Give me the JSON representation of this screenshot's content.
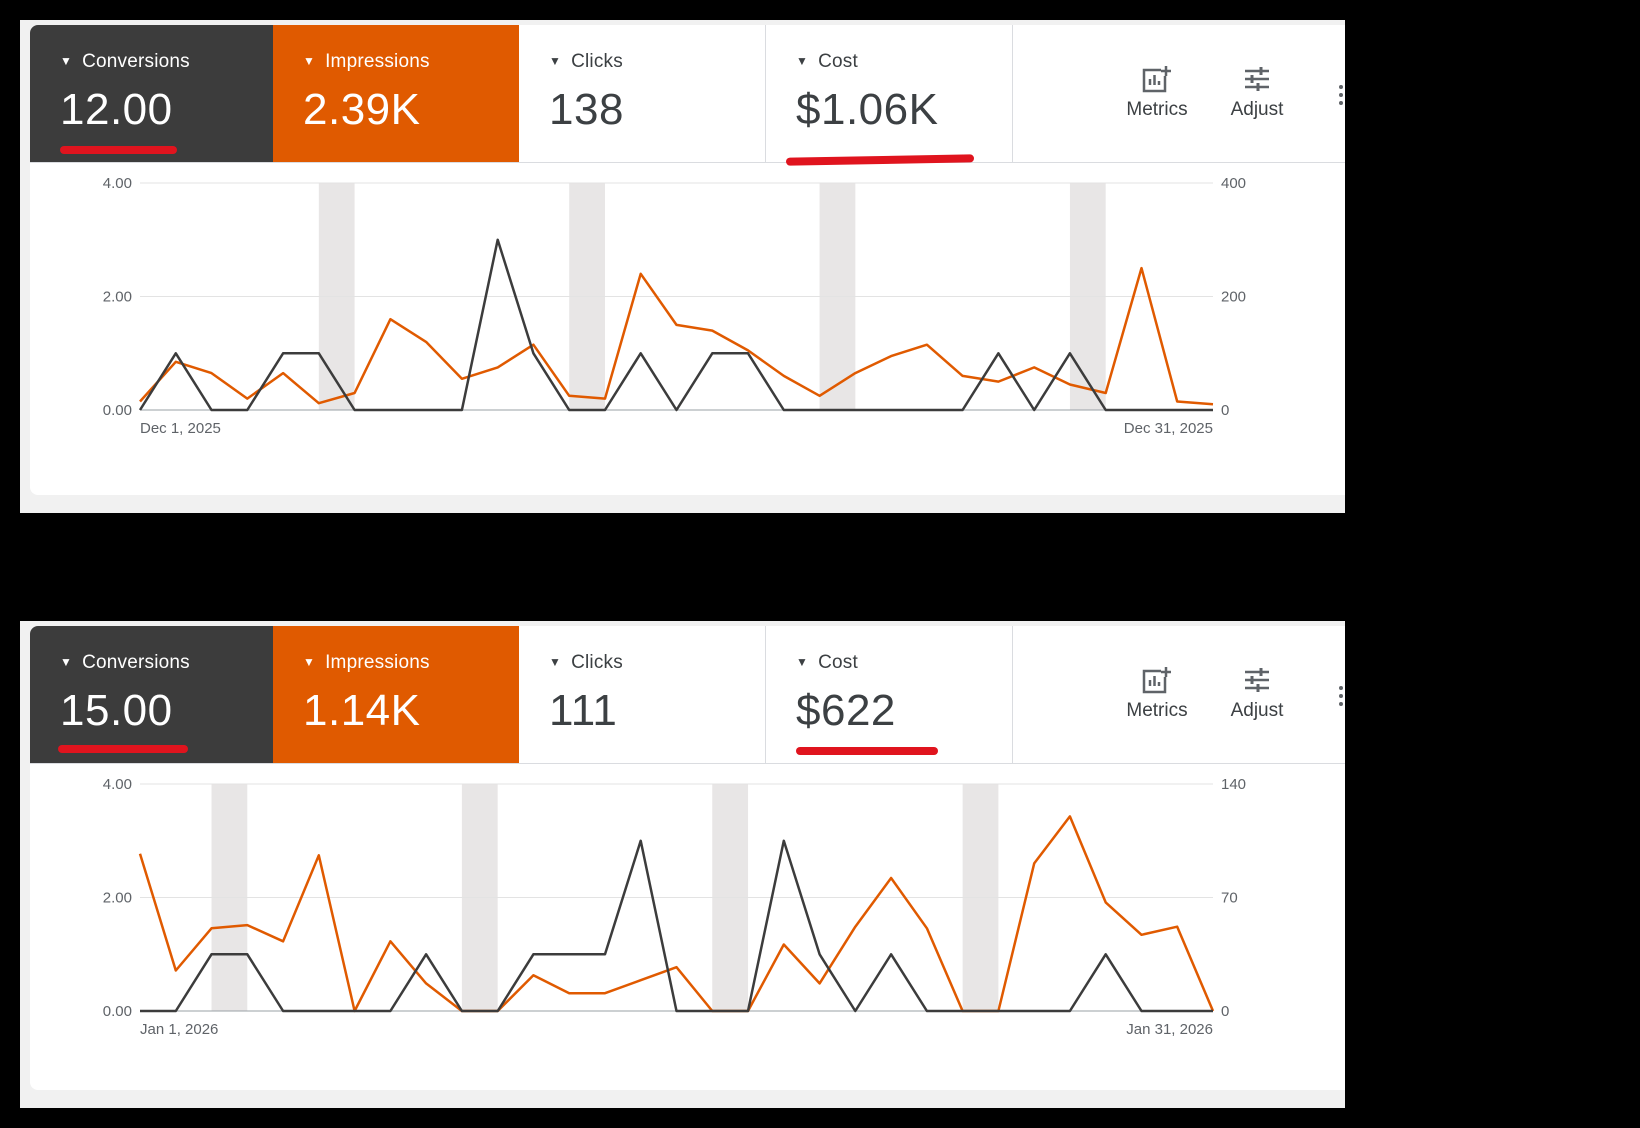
{
  "panels": [
    {
      "metrics": {
        "conversions": {
          "label": "Conversions",
          "value": "12.00"
        },
        "impressions": {
          "label": "Impressions",
          "value": "2.39K"
        },
        "clicks": {
          "label": "Clicks",
          "value": "138"
        },
        "cost": {
          "label": "Cost",
          "value": "$1.06K"
        }
      },
      "tools": {
        "metrics": "Metrics",
        "adjust": "Adjust"
      }
    },
    {
      "metrics": {
        "conversions": {
          "label": "Conversions",
          "value": "15.00"
        },
        "impressions": {
          "label": "Impressions",
          "value": "1.14K"
        },
        "clicks": {
          "label": "Clicks",
          "value": "111"
        },
        "cost": {
          "label": "Cost",
          "value": "$622"
        }
      },
      "tools": {
        "metrics": "Metrics",
        "adjust": "Adjust"
      }
    }
  ],
  "colors": {
    "conversions": "#3c3c3c",
    "impressions": "#e05a00",
    "highlight_underline": "#e0141e",
    "weekend_band": "#e8e6e6"
  },
  "chart_data": [
    {
      "type": "line",
      "x_start_label": "Dec 1, 2025",
      "x_end_label": "Dec 31, 2025",
      "x": [
        "Dec 1",
        "Dec 2",
        "Dec 3",
        "Dec 4",
        "Dec 5",
        "Dec 6",
        "Dec 7",
        "Dec 8",
        "Dec 9",
        "Dec 10",
        "Dec 11",
        "Dec 12",
        "Dec 13",
        "Dec 14",
        "Dec 15",
        "Dec 16",
        "Dec 17",
        "Dec 18",
        "Dec 19",
        "Dec 20",
        "Dec 21",
        "Dec 22",
        "Dec 23",
        "Dec 24",
        "Dec 25",
        "Dec 26",
        "Dec 27",
        "Dec 28",
        "Dec 29",
        "Dec 30",
        "Dec 31"
      ],
      "y_left_ticks": [
        "0.00",
        "2.00",
        "4.00"
      ],
      "y_left_lim": [
        0,
        4
      ],
      "y_right_ticks": [
        "0",
        "200",
        "400"
      ],
      "y_right_lim": [
        0,
        400
      ],
      "weekend_bands": [
        [
          "Dec 6",
          "Dec 7"
        ],
        [
          "Dec 13",
          "Dec 14"
        ],
        [
          "Dec 20",
          "Dec 21"
        ],
        [
          "Dec 27",
          "Dec 28"
        ]
      ],
      "series": [
        {
          "name": "Conversions",
          "axis": "left",
          "values": [
            0,
            1,
            0,
            0,
            1,
            1,
            0,
            0,
            0,
            0,
            3,
            1,
            0,
            0,
            1,
            0,
            1,
            1,
            0,
            0,
            0,
            0,
            0,
            0,
            1,
            0,
            1,
            0,
            0,
            0,
            0
          ]
        },
        {
          "name": "Impressions",
          "axis": "right",
          "values": [
            15,
            85,
            65,
            20,
            65,
            12,
            30,
            160,
            120,
            55,
            75,
            115,
            25,
            20,
            240,
            150,
            140,
            105,
            60,
            25,
            65,
            95,
            115,
            60,
            50,
            75,
            45,
            30,
            250,
            15,
            10
          ]
        }
      ]
    },
    {
      "type": "line",
      "x_start_label": "Jan 1, 2026",
      "x_end_label": "Jan 31, 2026",
      "x": [
        "Jan 1",
        "Jan 2",
        "Jan 3",
        "Jan 4",
        "Jan 5",
        "Jan 6",
        "Jan 7",
        "Jan 8",
        "Jan 9",
        "Jan 10",
        "Jan 11",
        "Jan 12",
        "Jan 13",
        "Jan 14",
        "Jan 15",
        "Jan 16",
        "Jan 17",
        "Jan 18",
        "Jan 19",
        "Jan 20",
        "Jan 21",
        "Jan 22",
        "Jan 23",
        "Jan 24",
        "Jan 25",
        "Jan 26",
        "Jan 27",
        "Jan 28",
        "Jan 29",
        "Jan 30",
        "Jan 31"
      ],
      "y_left_ticks": [
        "0.00",
        "2.00",
        "4.00"
      ],
      "y_left_lim": [
        0,
        4
      ],
      "y_right_ticks": [
        "0",
        "70",
        "140"
      ],
      "y_right_lim": [
        0,
        140
      ],
      "weekend_bands": [
        [
          "Jan 3",
          "Jan 4"
        ],
        [
          "Jan 10",
          "Jan 11"
        ],
        [
          "Jan 17",
          "Jan 18"
        ],
        [
          "Jan 24",
          "Jan 25"
        ]
      ],
      "series": [
        {
          "name": "Conversions",
          "axis": "left",
          "values": [
            0,
            0,
            1,
            1,
            0,
            0,
            0,
            0,
            1,
            0,
            0,
            1,
            1,
            1,
            3,
            0,
            0,
            0,
            3,
            1,
            0,
            1,
            0,
            0,
            0,
            0,
            0,
            1,
            0,
            0,
            0
          ]
        },
        {
          "name": "Impressions",
          "axis": "right",
          "values": [
            97,
            25,
            51,
            53,
            43,
            96,
            0,
            43,
            17,
            0,
            0,
            22,
            11,
            11,
            19,
            27,
            0,
            0,
            41,
            17,
            52,
            82,
            51,
            0,
            0,
            91,
            120,
            67,
            47,
            52,
            0
          ]
        }
      ]
    }
  ]
}
